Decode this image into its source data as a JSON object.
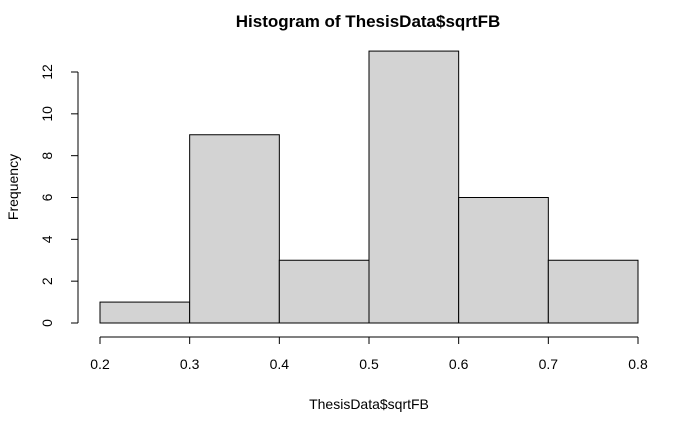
{
  "chart_data": {
    "type": "bar",
    "title": "Histogram of ThesisData$sqrtFB",
    "xlabel": "ThesisData$sqrtFB",
    "ylabel": "Frequency",
    "bins": [
      {
        "from": 0.2,
        "to": 0.3,
        "count": 1
      },
      {
        "from": 0.3,
        "to": 0.4,
        "count": 9
      },
      {
        "from": 0.4,
        "to": 0.5,
        "count": 3
      },
      {
        "from": 0.5,
        "to": 0.6,
        "count": 13
      },
      {
        "from": 0.6,
        "to": 0.7,
        "count": 6
      },
      {
        "from": 0.7,
        "to": 0.8,
        "count": 3
      }
    ],
    "xlim": [
      0.2,
      0.8
    ],
    "ylim": [
      0,
      13
    ],
    "x_ticks": [
      "0.2",
      "0.3",
      "0.4",
      "0.5",
      "0.6",
      "0.7",
      "0.8"
    ],
    "y_ticks": [
      "0",
      "2",
      "4",
      "6",
      "8",
      "10",
      "12"
    ],
    "bar_color": "#d3d3d3",
    "border_color": "#000000",
    "grid": false
  }
}
